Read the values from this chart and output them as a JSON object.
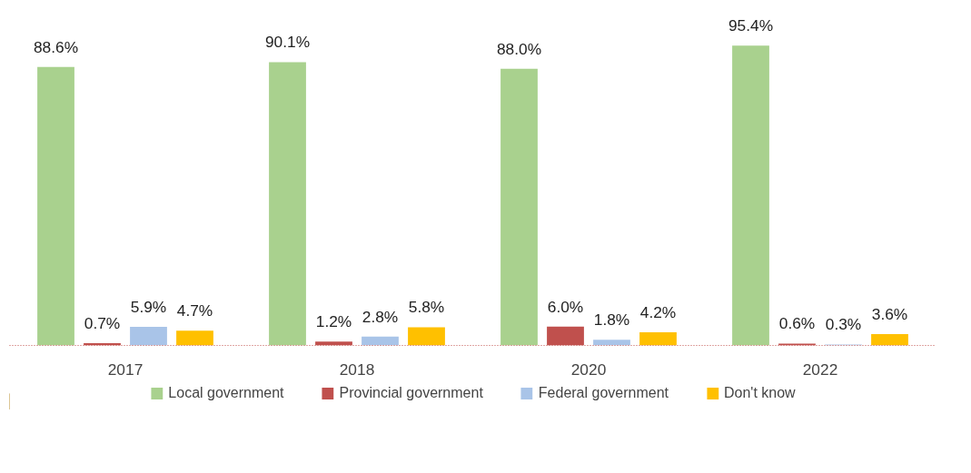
{
  "chart_data": {
    "type": "bar",
    "categories": [
      "2017",
      "2018",
      "2020",
      "2022"
    ],
    "series": [
      {
        "name": "Local government",
        "color": "#a9d18e",
        "values": [
          88.6,
          90.1,
          88.0,
          95.4
        ],
        "value_labels": [
          "88.6%",
          "90.1%",
          "88.0%",
          "95.4%"
        ]
      },
      {
        "name": "Provincial government",
        "color": "#c0504d",
        "values": [
          0.7,
          1.2,
          6.0,
          0.6
        ],
        "value_labels": [
          "0.7%",
          "1.2%",
          "6.0%",
          "0.6%"
        ]
      },
      {
        "name": "Federal government",
        "color": "#a9c4e8",
        "values": [
          5.9,
          2.8,
          1.8,
          0.3
        ],
        "value_labels": [
          "5.9%",
          "2.8%",
          "1.8%",
          "0.3%"
        ]
      },
      {
        "name": "Don't know",
        "color": "#ffc000",
        "values": [
          4.7,
          5.8,
          4.2,
          3.6
        ],
        "value_labels": [
          "4.7%",
          "5.8%",
          "4.2%",
          "3.6%"
        ]
      }
    ],
    "legend": "bottom",
    "grid": false,
    "tick_labels": "x"
  }
}
